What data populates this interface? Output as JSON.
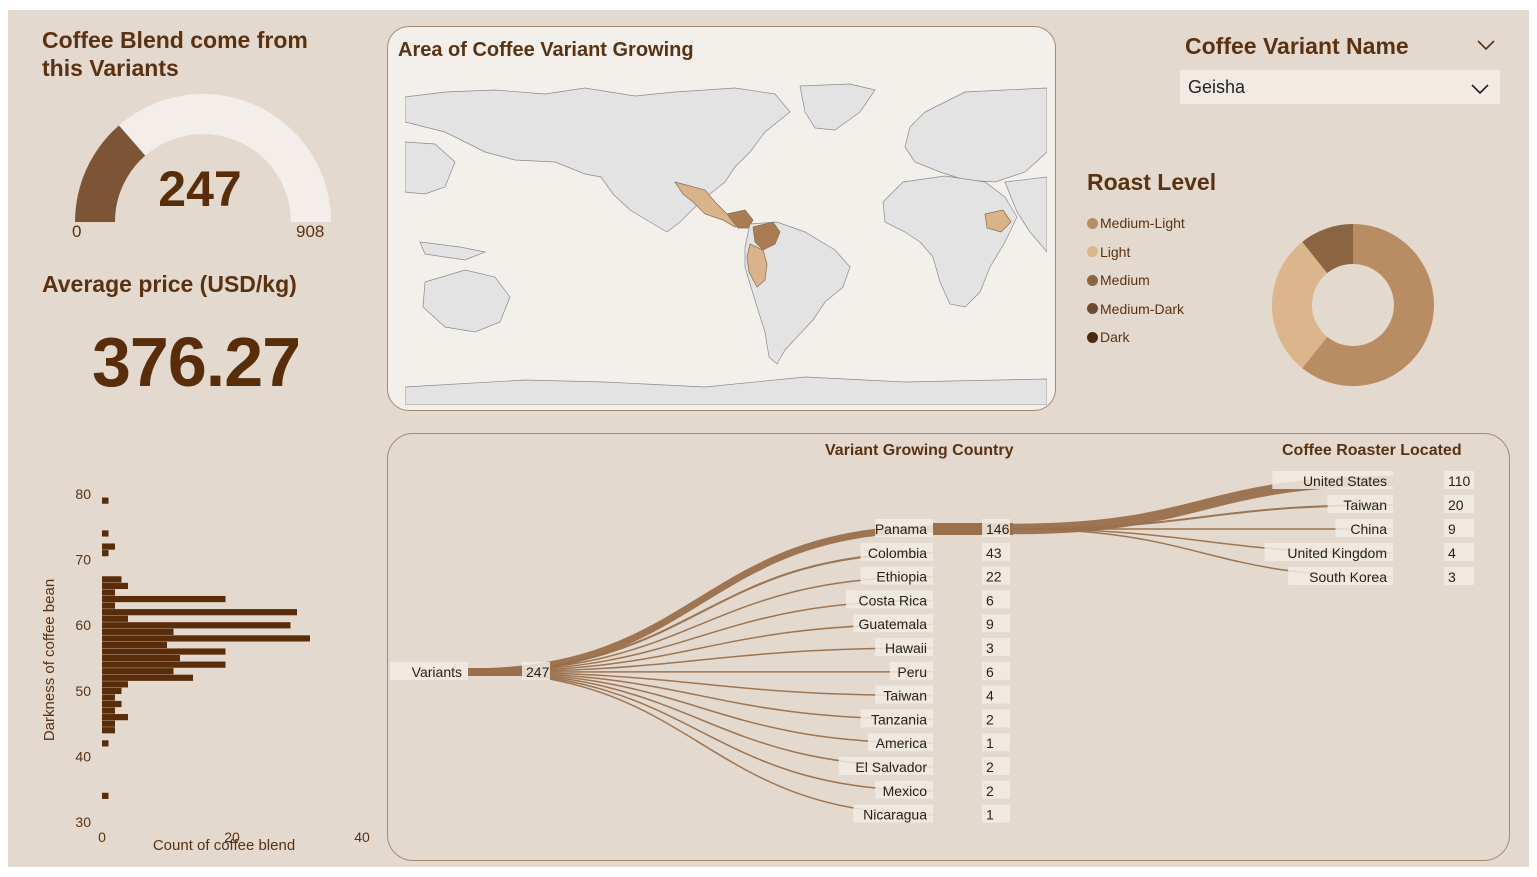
{
  "gauge": {
    "title": "Coffee Blend come from this Variants",
    "value": 247,
    "value_label": "247",
    "min_label": "0",
    "max_label": "908",
    "max": 908,
    "fill_color": "#7b5535",
    "track_color": "#f3eeea"
  },
  "price": {
    "title": "Average price (USD/kg)",
    "value": "376.27"
  },
  "map": {
    "title": "Area of Coffee Variant Growing",
    "highlight_colors": {
      "light": "#d9b38a",
      "medium": "#a97c54"
    }
  },
  "filter": {
    "title": "Coffee Variant Name",
    "selected": "Geisha"
  },
  "roast": {
    "title": "Roast Level",
    "legend": [
      {
        "label": "Medium-Light",
        "color": "#b98d64"
      },
      {
        "label": "Light",
        "color": "#dbb58b"
      },
      {
        "label": "Medium",
        "color": "#8b6442"
      },
      {
        "label": "Medium-Dark",
        "color": "#6e4c30"
      },
      {
        "label": "Dark",
        "color": "#4a2b12"
      }
    ]
  },
  "sankey": {
    "col1_title": "Variant Growing Country",
    "col2_title": "Coffee Roaster Located",
    "root": {
      "label": "Variants",
      "value": "247"
    },
    "countries": [
      {
        "label": "Panama",
        "value": "146"
      },
      {
        "label": "Colombia",
        "value": "43"
      },
      {
        "label": "Ethiopia",
        "value": "22"
      },
      {
        "label": "Costa Rica",
        "value": "6"
      },
      {
        "label": "Guatemala",
        "value": "9"
      },
      {
        "label": "Hawaii",
        "value": "3"
      },
      {
        "label": "Peru",
        "value": "6"
      },
      {
        "label": "Taiwan",
        "value": "4"
      },
      {
        "label": "Tanzania",
        "value": "2"
      },
      {
        "label": "America",
        "value": "1"
      },
      {
        "label": "El Salvador",
        "value": "2"
      },
      {
        "label": "Mexico",
        "value": "2"
      },
      {
        "label": "Nicaragua",
        "value": "1"
      }
    ],
    "roasters": [
      {
        "label": "United States",
        "value": "110"
      },
      {
        "label": "Taiwan",
        "value": "20"
      },
      {
        "label": "China",
        "value": "9"
      },
      {
        "label": "United Kingdom",
        "value": "4"
      },
      {
        "label": "South Korea",
        "value": "3"
      }
    ]
  },
  "chart_data": {
    "type": "bar",
    "orientation": "horizontal",
    "xlabel": "Count of coffee blend",
    "ylabel": "Darkness of coffee bean",
    "xlim": [
      0,
      40
    ],
    "ylim": [
      30,
      80
    ],
    "x_ticks": [
      "0",
      "20",
      "40"
    ],
    "y_ticks": [
      "30",
      "40",
      "50",
      "60",
      "70",
      "80"
    ],
    "color": "#5a2d0a",
    "bars": [
      {
        "y": 79,
        "x": 1
      },
      {
        "y": 74,
        "x": 1
      },
      {
        "y": 72,
        "x": 2
      },
      {
        "y": 71,
        "x": 1
      },
      {
        "y": 67,
        "x": 3
      },
      {
        "y": 66,
        "x": 4
      },
      {
        "y": 65,
        "x": 2
      },
      {
        "y": 64,
        "x": 19
      },
      {
        "y": 63,
        "x": 2
      },
      {
        "y": 62,
        "x": 30
      },
      {
        "y": 61,
        "x": 4
      },
      {
        "y": 60,
        "x": 29
      },
      {
        "y": 59,
        "x": 11
      },
      {
        "y": 58,
        "x": 32
      },
      {
        "y": 57,
        "x": 10
      },
      {
        "y": 56,
        "x": 19
      },
      {
        "y": 55,
        "x": 12
      },
      {
        "y": 54,
        "x": 19
      },
      {
        "y": 53,
        "x": 11
      },
      {
        "y": 52,
        "x": 14
      },
      {
        "y": 51,
        "x": 4
      },
      {
        "y": 50,
        "x": 3
      },
      {
        "y": 49,
        "x": 2
      },
      {
        "y": 48,
        "x": 3
      },
      {
        "y": 47,
        "x": 2
      },
      {
        "y": 46,
        "x": 4
      },
      {
        "y": 45,
        "x": 2
      },
      {
        "y": 44,
        "x": 2
      },
      {
        "y": 42,
        "x": 1
      },
      {
        "y": 34,
        "x": 1
      }
    ]
  }
}
